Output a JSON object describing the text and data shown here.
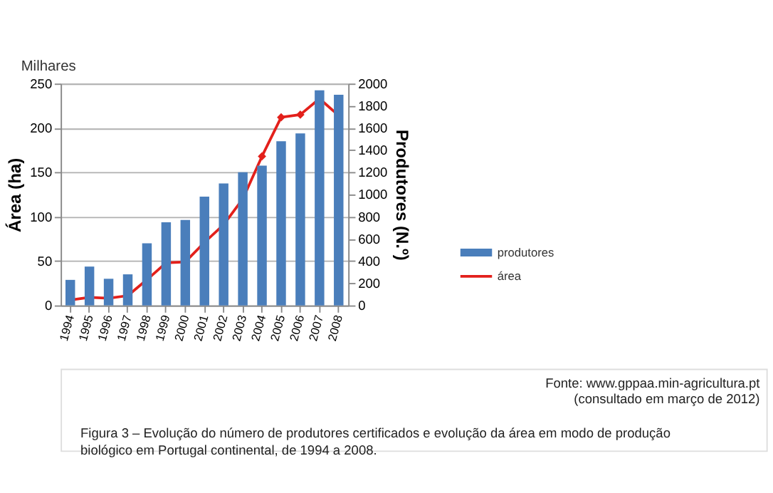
{
  "chart_data": {
    "type": "bar",
    "categories": [
      "1994",
      "1995",
      "1996",
      "1997",
      "1998",
      "1999",
      "2000",
      "2001",
      "2002",
      "2003",
      "2004",
      "2005",
      "2006",
      "2007",
      "2008"
    ],
    "ylabel": "Área (ha)",
    "y2label": "Produtores (N.º)",
    "ylim": [
      0,
      250
    ],
    "yticks": [
      0,
      50,
      100,
      150,
      200,
      250
    ],
    "y2lim": [
      0,
      2000
    ],
    "y2ticks": [
      0,
      200,
      400,
      600,
      800,
      1000,
      1200,
      1400,
      1600,
      1800,
      2000
    ],
    "series": [
      {
        "name": "produtores",
        "axis": "y2",
        "color": "#4a7ebb",
        "values": [
          230,
          350,
          240,
          280,
          560,
          750,
          770,
          980,
          1100,
          1200,
          1260,
          1480,
          1550,
          1940,
          1900
        ]
      },
      {
        "name": "área",
        "type": "line",
        "color": "#e3201b",
        "marker": "diamond",
        "values": [
          6,
          9,
          8,
          11,
          29,
          48,
          49,
          71,
          91,
          120,
          168,
          212,
          215,
          233,
          214
        ]
      }
    ],
    "grid": "y",
    "legend": "right",
    "annotations": [
      "Milhares",
      "Fonte: www.gppaa.min-agricultura.pt",
      "(consultado em março de 2012)",
      "Figura 3 – Evolução do número de produtores certificados e evolução da área em modo de produção biológico em Portugal continental, de 1994 a 2008."
    ]
  }
}
